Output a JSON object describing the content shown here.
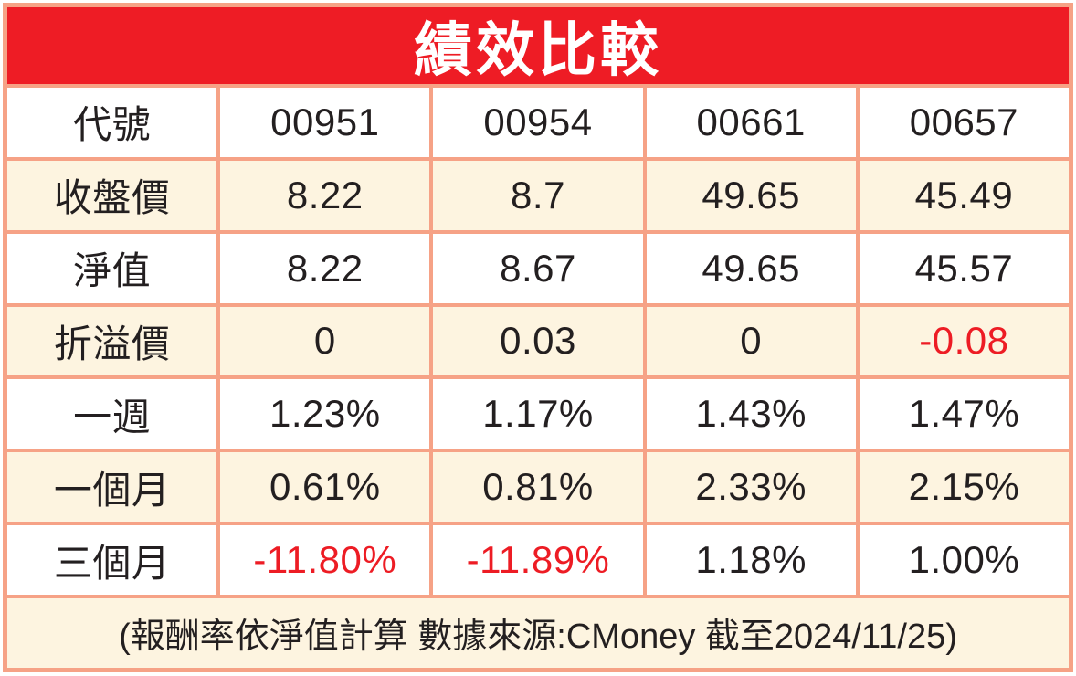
{
  "chart_data": {
    "type": "table",
    "title": "績效比較",
    "columns": [
      "代號",
      "00951",
      "00954",
      "00661",
      "00657"
    ],
    "rows": [
      {
        "label": "收盤價",
        "values": [
          "8.22",
          "8.7",
          "49.65",
          "45.49"
        ]
      },
      {
        "label": "淨值",
        "values": [
          "8.22",
          "8.67",
          "49.65",
          "45.57"
        ]
      },
      {
        "label": "折溢價",
        "values": [
          "0",
          "0.03",
          "0",
          "-0.08"
        ]
      },
      {
        "label": "一週",
        "values": [
          "1.23%",
          "1.17%",
          "1.43%",
          "1.47%"
        ]
      },
      {
        "label": "一個月",
        "values": [
          "0.61%",
          "0.81%",
          "2.33%",
          "2.15%"
        ]
      },
      {
        "label": "三個月",
        "values": [
          "-11.80%",
          "-11.89%",
          "1.18%",
          "1.00%"
        ]
      }
    ],
    "footnote": "(報酬率依淨值計算 數據來源:CMoney 截至2024/11/25)"
  },
  "colors": {
    "header_bg": "#ee1c25",
    "header_text": "#ffffff",
    "border": "#f6a286",
    "stripe_bg": "#fdf4e0",
    "white_bg": "#ffffff",
    "text": "#231f20",
    "negative": "#ed1c24"
  }
}
